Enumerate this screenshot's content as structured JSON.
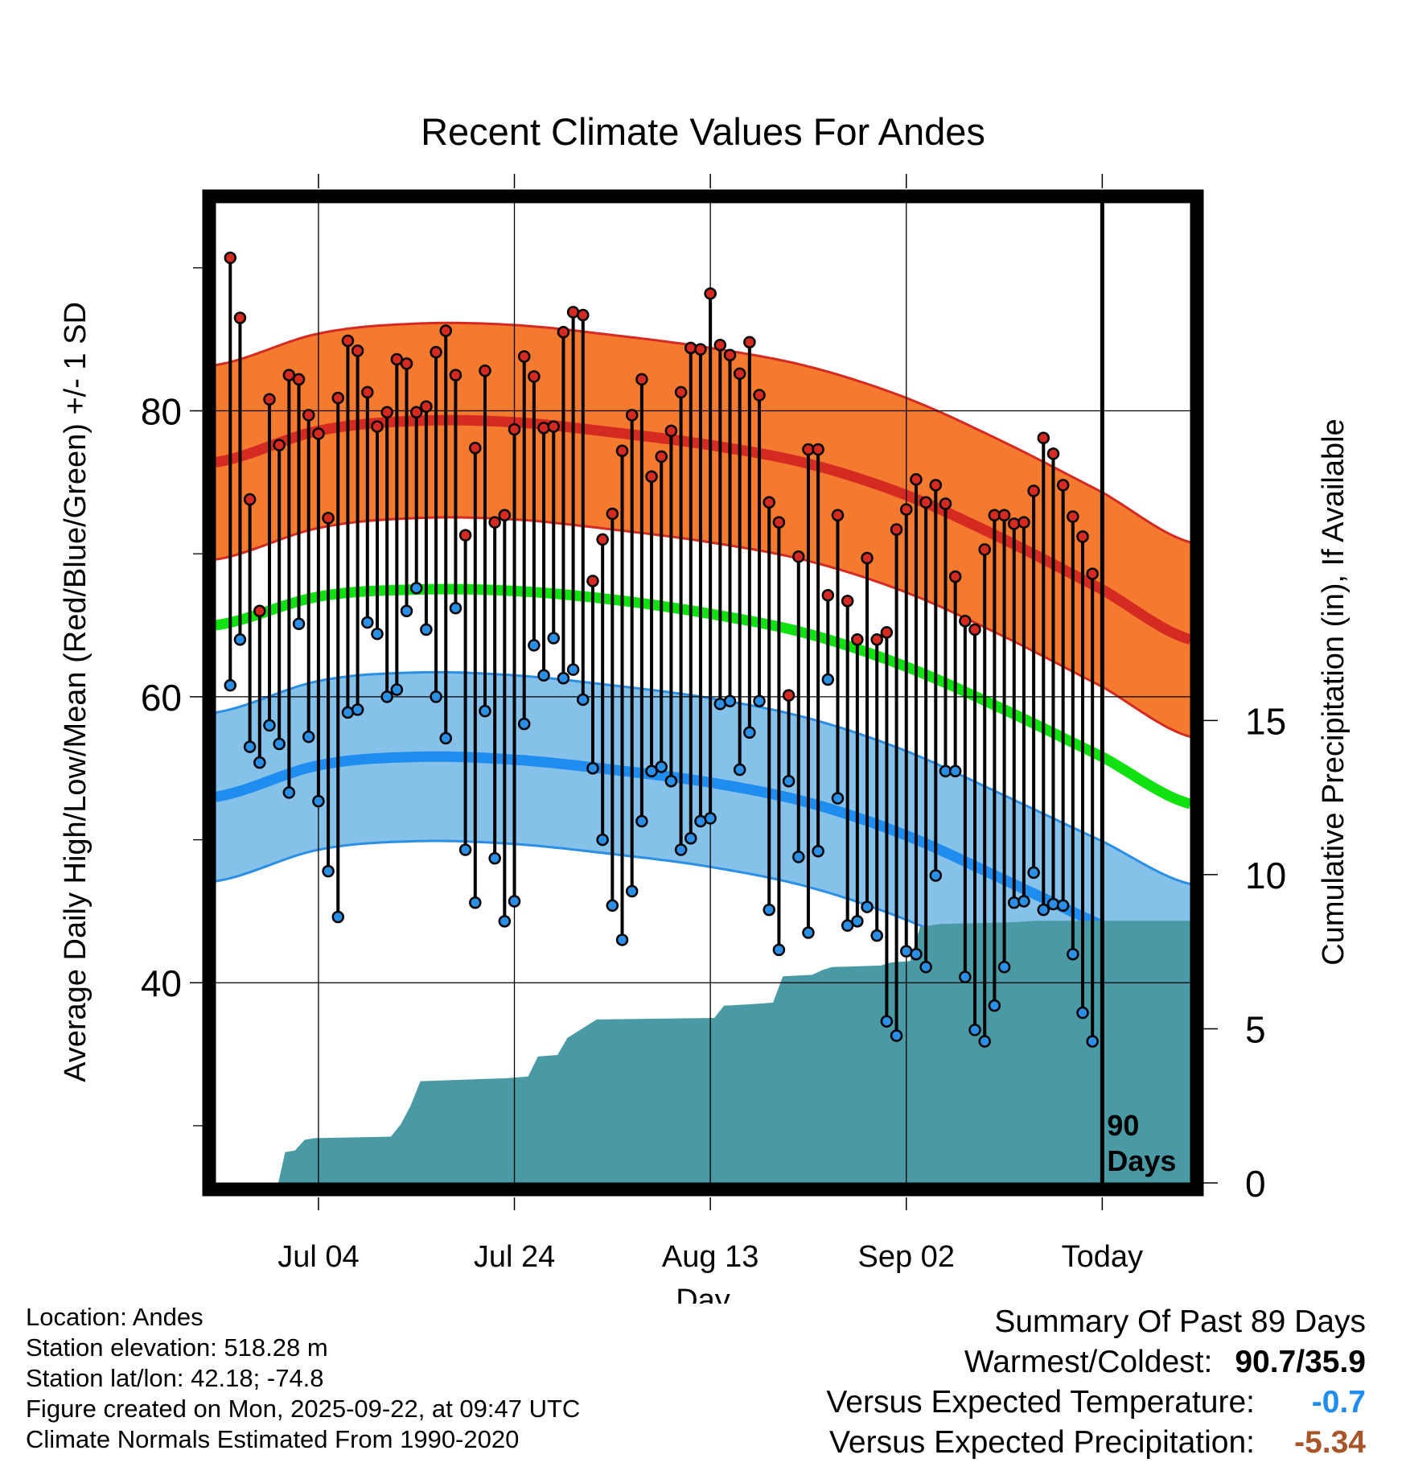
{
  "chart_data": {
    "type": "line",
    "title": "Recent Climate Values For Andes",
    "xlabel": "Day",
    "ylabel_left": "Average Daily High/Low/Mean (Red/Blue/Green) +/- 1 SD",
    "ylabel_right": "Cumulative Precipitation (in), If Available",
    "x_range_days": [
      -90.5,
      9
    ],
    "ylim_left": [
      26,
      95
    ],
    "ylim_right": [
      0,
      32
    ],
    "x_ticks": [
      {
        "day": -80,
        "label": "Jul 04"
      },
      {
        "day": -60,
        "label": "Jul 24"
      },
      {
        "day": -40,
        "label": "Aug 13"
      },
      {
        "day": -20,
        "label": "Sep 02"
      },
      {
        "day": 0,
        "label": "Today"
      }
    ],
    "y_ticks_left": [
      40,
      60,
      80
    ],
    "y_minor_ticks_left": [
      30,
      50,
      70,
      90
    ],
    "y_ticks_right": [
      0,
      5,
      10,
      15
    ],
    "today_marker_label": "90\nDays",
    "colors": {
      "high_band": "#f47a30",
      "high_band_edge": "#d42a22",
      "high_mean": "#d42a22",
      "low_band": "#85c1e8",
      "low_band_edge": "#2b8fe6",
      "low_mean": "#1f8cf0",
      "mean": "#11e011",
      "precip": "#4a9aa5",
      "high_dot": "#d42a22",
      "low_dot": "#2b8fe6",
      "frame": "#000000"
    },
    "normals": {
      "days": [
        -90.5,
        -80,
        -70,
        -60,
        -50,
        -40,
        -30,
        -20,
        -10,
        0,
        9
      ],
      "high_mean": [
        76.4,
        78.6,
        79.3,
        79.2,
        78.5,
        77.6,
        76.3,
        74.1,
        71.0,
        67.5,
        64.0
      ],
      "high_sd": 6.8,
      "low_mean": [
        53.0,
        55.2,
        55.8,
        55.6,
        54.9,
        54.0,
        52.6,
        50.3,
        47.2,
        44.0,
        41.0
      ],
      "low_sd": 5.9,
      "mean": [
        65.0,
        67.0,
        67.5,
        67.4,
        66.8,
        65.8,
        64.4,
        62.1,
        59.1,
        55.8,
        52.5
      ]
    },
    "daily_high": [
      90.7,
      86.5,
      73.8,
      66.0,
      80.8,
      77.6,
      82.5,
      82.2,
      79.7,
      78.4,
      72.5,
      80.9,
      84.9,
      84.2,
      81.3,
      78.9,
      79.9,
      83.6,
      83.3,
      79.9,
      80.3,
      84.1,
      85.6,
      82.5,
      71.3,
      77.4,
      82.8,
      72.2,
      72.7,
      78.7,
      83.8,
      82.4,
      78.8,
      78.9,
      85.5,
      86.9,
      86.7,
      68.1,
      71.0,
      72.8,
      77.2,
      79.7,
      82.2,
      75.4,
      76.8,
      78.6,
      81.3,
      84.4,
      84.3,
      88.2,
      84.6,
      83.9,
      82.6,
      84.8,
      81.1,
      73.6,
      72.2,
      60.1,
      69.8,
      77.3,
      77.3,
      67.1,
      72.7,
      66.7,
      64.0,
      69.7,
      64.0,
      64.5,
      71.7,
      73.1,
      75.2,
      73.6,
      74.8,
      73.5,
      68.4,
      65.3,
      64.7,
      70.3,
      72.7,
      72.7,
      72.1,
      72.2,
      74.4,
      78.1,
      77.0,
      74.8,
      72.6,
      71.2,
      68.6
    ],
    "daily_low": [
      60.8,
      64.0,
      56.5,
      55.4,
      58.0,
      56.7,
      53.3,
      65.1,
      57.2,
      52.7,
      47.8,
      44.6,
      58.9,
      59.1,
      65.2,
      64.4,
      60.0,
      60.5,
      66.0,
      67.6,
      64.7,
      60.0,
      57.1,
      66.2,
      49.3,
      45.6,
      59.0,
      48.7,
      44.3,
      45.7,
      58.1,
      63.6,
      61.5,
      64.1,
      61.3,
      61.9,
      59.8,
      55.0,
      50.0,
      45.4,
      43.0,
      46.4,
      51.3,
      54.8,
      55.1,
      54.1,
      49.3,
      50.1,
      51.3,
      51.5,
      59.5,
      59.7,
      54.9,
      57.5,
      59.7,
      45.1,
      42.3,
      54.1,
      48.8,
      43.5,
      49.2,
      61.2,
      52.9,
      44.0,
      44.3,
      45.3,
      43.3,
      37.3,
      36.3,
      42.2,
      42.0,
      41.1,
      47.5,
      54.8,
      54.8,
      40.4,
      36.7,
      35.9,
      38.4,
      41.1,
      45.6,
      45.7,
      47.7,
      45.1,
      45.5,
      45.4,
      42.0,
      37.9,
      35.9
    ],
    "precip_cumulative": [
      [
        -90.5,
        0
      ],
      [
        -84.1,
        0
      ],
      [
        -83.4,
        1.0
      ],
      [
        -82.4,
        1.05
      ],
      [
        -81.4,
        1.4
      ],
      [
        -80.4,
        1.45
      ],
      [
        -72.6,
        1.5
      ],
      [
        -71.6,
        1.9
      ],
      [
        -70.6,
        2.5
      ],
      [
        -69.6,
        3.3
      ],
      [
        -60.6,
        3.4
      ],
      [
        -58.6,
        3.45
      ],
      [
        -57.6,
        4.1
      ],
      [
        -55.6,
        4.15
      ],
      [
        -54.6,
        4.7
      ],
      [
        -51.6,
        5.3
      ],
      [
        -39.6,
        5.35
      ],
      [
        -38.6,
        5.75
      ],
      [
        -35.6,
        5.8
      ],
      [
        -33.6,
        5.85
      ],
      [
        -32.6,
        6.7
      ],
      [
        -29.6,
        6.75
      ],
      [
        -28.6,
        6.9
      ],
      [
        -27.6,
        7.0
      ],
      [
        -22.6,
        7.05
      ],
      [
        -21.6,
        7.15
      ],
      [
        -19.6,
        7.2
      ],
      [
        -18.6,
        8.3
      ],
      [
        -16.6,
        8.4
      ],
      [
        -9.6,
        8.45
      ],
      [
        -6.6,
        8.5
      ],
      [
        9,
        8.5
      ]
    ]
  },
  "footer": {
    "location": "Location: Andes",
    "elevation": "Station elevation: 518.28 m",
    "latlon": "Station lat/lon: 42.18; -74.8",
    "created": "Figure created on Mon, 2025-09-22, at 09:47 UTC",
    "normals": "Climate Normals Estimated From 1990-2020"
  },
  "summary": {
    "title": "Summary Of Past 89 Days",
    "warmest_label": "Warmest/Coldest:",
    "warmest_value": "90.7/35.9",
    "temp_label": "Versus Expected Temperature:",
    "temp_value": "-0.7",
    "temp_color": "#1f8cf0",
    "precip_label": "Versus Expected Precipitation:",
    "precip_value": "-5.34",
    "precip_color": "#a8552a"
  }
}
